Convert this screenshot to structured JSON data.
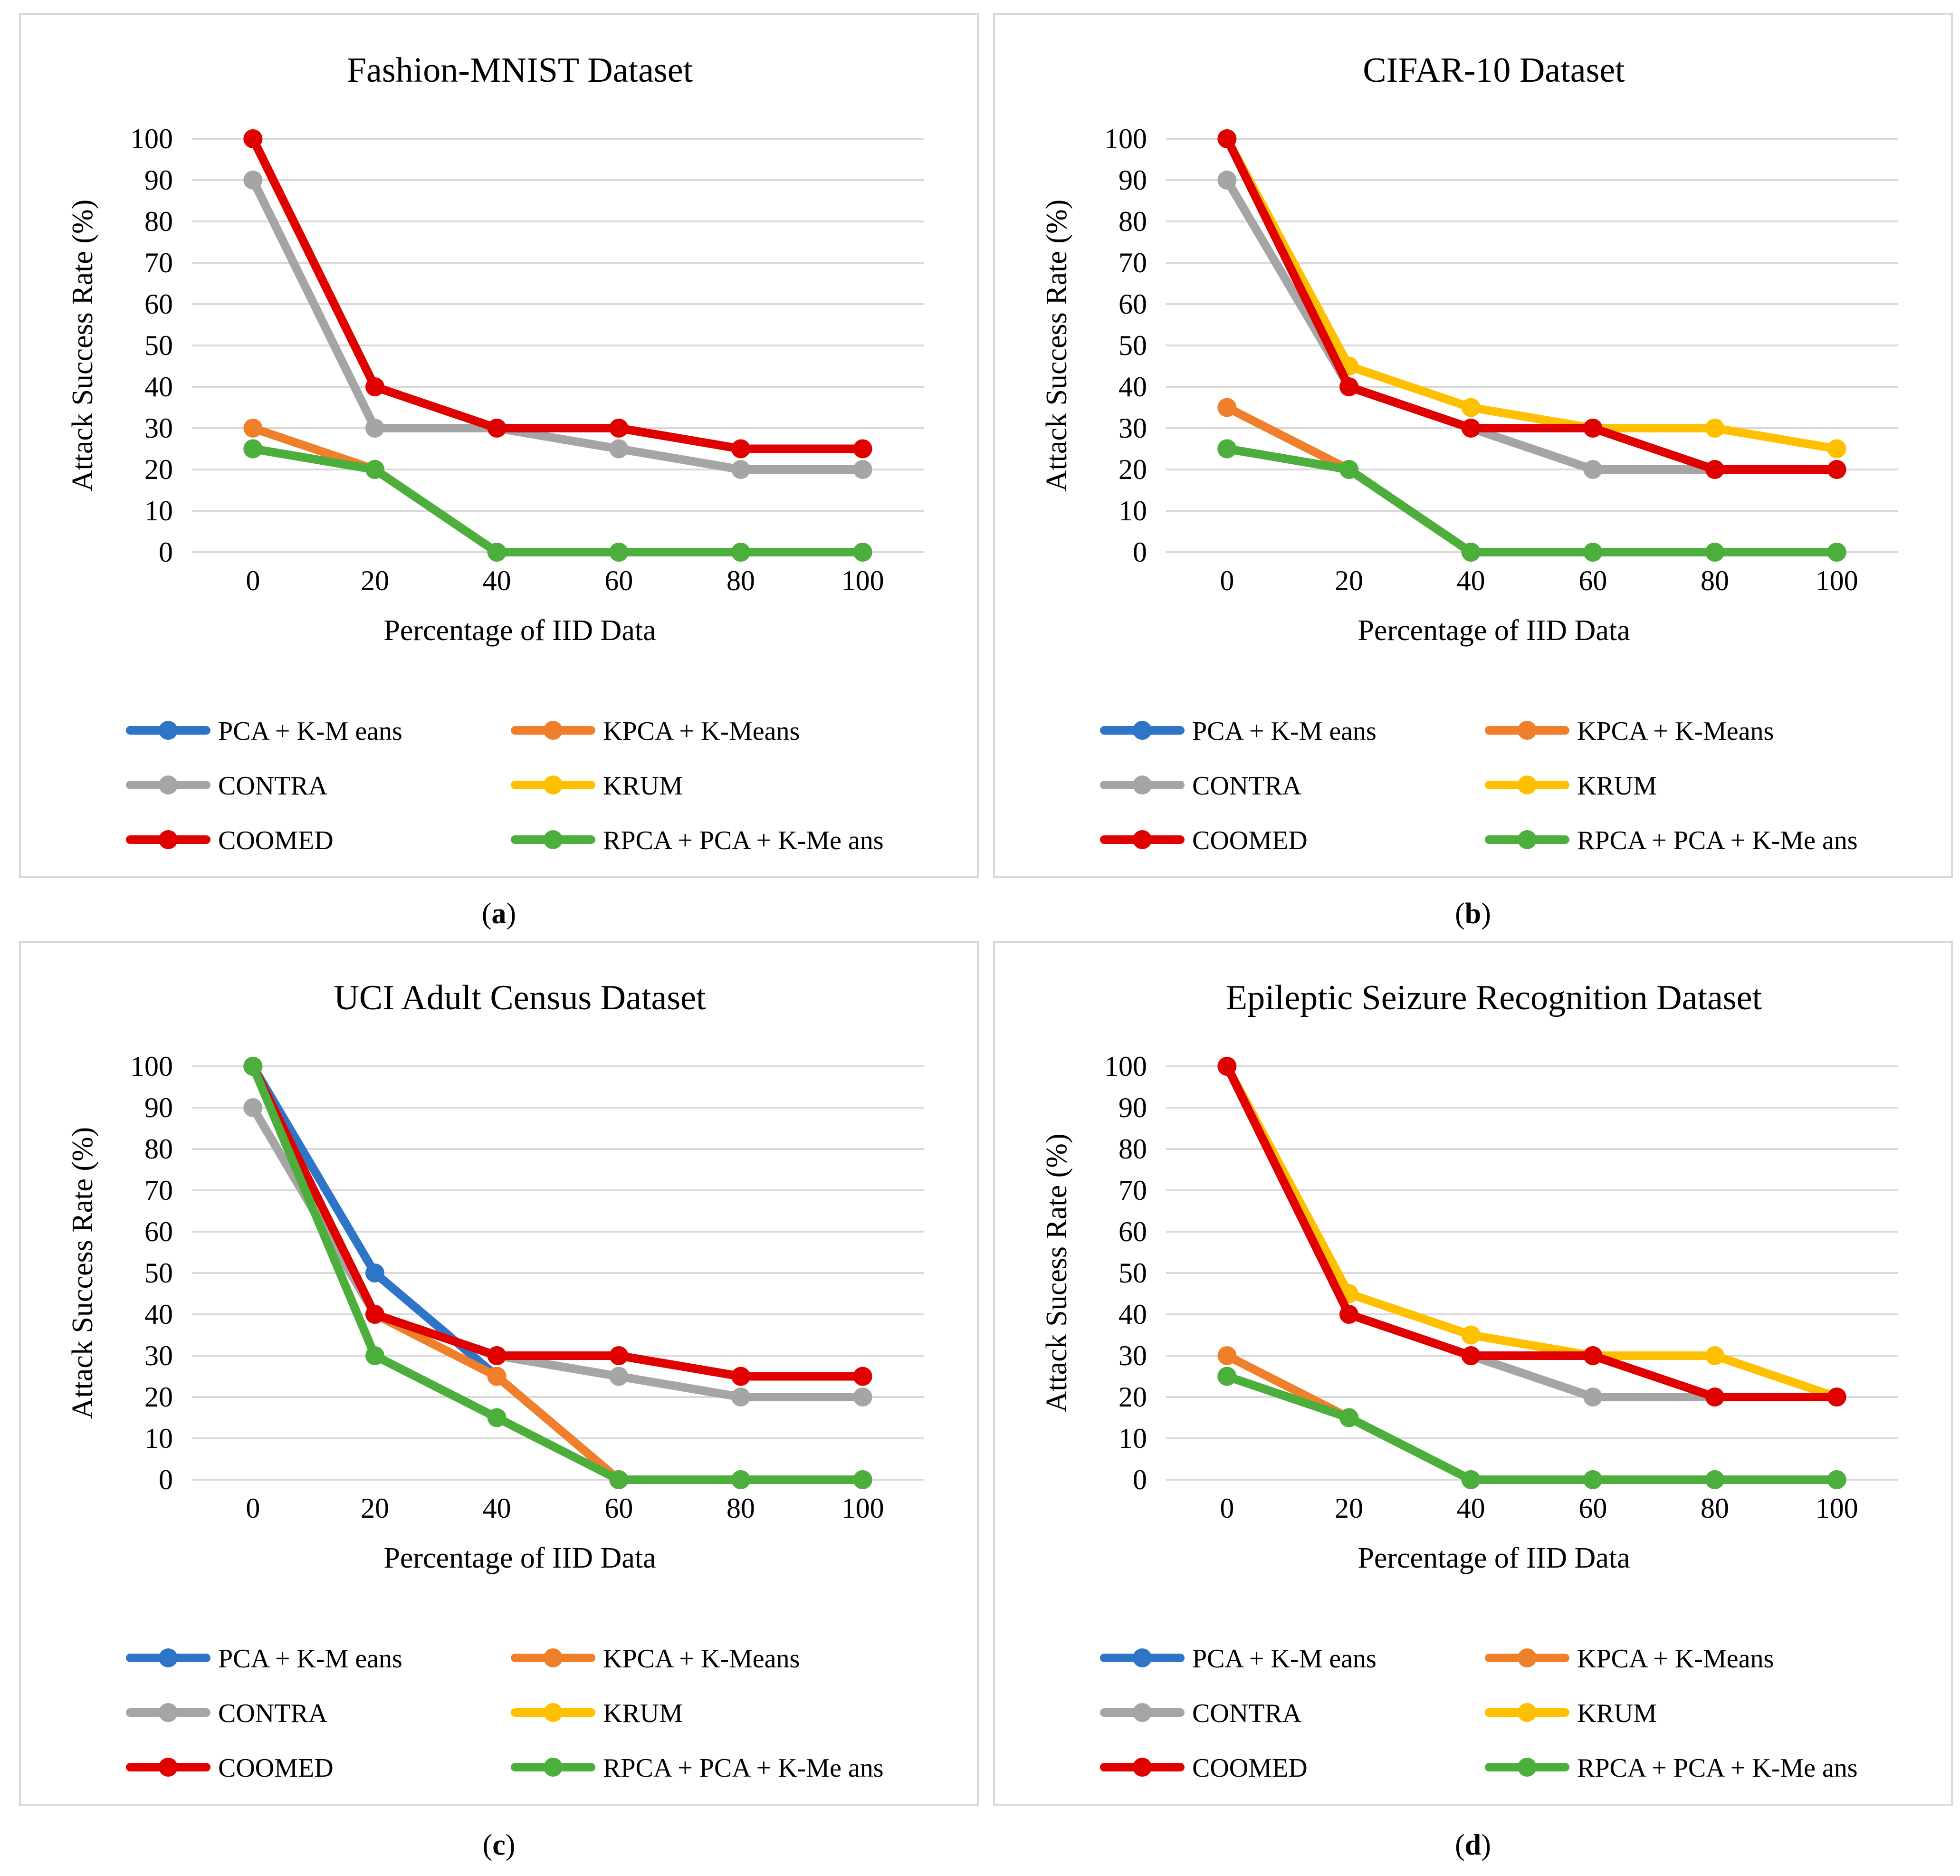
{
  "colors": {
    "PCA + K-Means": "#2e75c8",
    "KPCA + K-Means": "#f07f2c",
    "CONTRA": "#a5a5a5",
    "KRUM": "#ffc000",
    "COOMED": "#e00000",
    "RPCA + PCA + K-Means": "#4caf3c",
    "grid": "#d9d9d9"
  },
  "legend_labels": [
    "PCA + K-M eans",
    "KPCA + K-Means",
    "CONTRA",
    "KRUM",
    "COOMED",
    "RPCA + PCA + K-Me ans"
  ],
  "chart_data": [
    {
      "type": "line",
      "panel": "a",
      "caption": "a",
      "title": "Fashion-MNIST Dataset",
      "xlabel": "Percentage of IID Data",
      "ylabel": "Attack Success Rate (%)",
      "ylim": [
        0,
        100
      ],
      "yticks": [
        0,
        10,
        20,
        30,
        40,
        50,
        60,
        70,
        80,
        90,
        100
      ],
      "categories": [
        "0",
        "20",
        "40",
        "60",
        "80",
        "100"
      ],
      "series": [
        {
          "name": "PCA + K-Means",
          "values": [
            25,
            20,
            0,
            0,
            0,
            0
          ]
        },
        {
          "name": "KPCA + K-Means",
          "values": [
            30,
            20,
            0,
            0,
            0,
            0
          ]
        },
        {
          "name": "CONTRA",
          "values": [
            90,
            30,
            30,
            25,
            20,
            20
          ]
        },
        {
          "name": "KRUM",
          "values": [
            100,
            40,
            30,
            30,
            25,
            25
          ]
        },
        {
          "name": "COOMED",
          "values": [
            100,
            40,
            30,
            30,
            25,
            25
          ]
        },
        {
          "name": "RPCA + PCA + K-Means",
          "values": [
            25,
            20,
            0,
            0,
            0,
            0
          ]
        }
      ]
    },
    {
      "type": "line",
      "panel": "b",
      "caption": "b",
      "title": "CIFAR-10 Dataset",
      "xlabel": "Percentage of IID Data",
      "ylabel": "Attack Success Rate (%)",
      "ylim": [
        0,
        100
      ],
      "yticks": [
        0,
        10,
        20,
        30,
        40,
        50,
        60,
        70,
        80,
        90,
        100
      ],
      "categories": [
        "0",
        "20",
        "40",
        "60",
        "80",
        "100"
      ],
      "series": [
        {
          "name": "PCA + K-Means",
          "values": [
            25,
            20,
            0,
            0,
            0,
            0
          ]
        },
        {
          "name": "KPCA + K-Means",
          "values": [
            35,
            20,
            0,
            0,
            0,
            0
          ]
        },
        {
          "name": "CONTRA",
          "values": [
            90,
            40,
            30,
            20,
            20,
            20
          ]
        },
        {
          "name": "KRUM",
          "values": [
            100,
            45,
            35,
            30,
            30,
            25
          ]
        },
        {
          "name": "COOMED",
          "values": [
            100,
            40,
            30,
            30,
            20,
            20
          ]
        },
        {
          "name": "RPCA + PCA + K-Means",
          "values": [
            25,
            20,
            0,
            0,
            0,
            0
          ]
        }
      ]
    },
    {
      "type": "line",
      "panel": "c",
      "caption": "c",
      "title": "UCI Adult Census Dataset",
      "xlabel": "Percentage of IID Data",
      "ylabel": "Attack Success Rate (%)",
      "ylim": [
        0,
        100
      ],
      "yticks": [
        0,
        10,
        20,
        30,
        40,
        50,
        60,
        70,
        80,
        90,
        100
      ],
      "categories": [
        "0",
        "20",
        "40",
        "60",
        "80",
        "100"
      ],
      "series": [
        {
          "name": "PCA + K-Means",
          "values": [
            100,
            50,
            25,
            0,
            0,
            0
          ]
        },
        {
          "name": "KPCA + K-Means",
          "values": [
            100,
            40,
            25,
            0,
            0,
            0
          ]
        },
        {
          "name": "CONTRA",
          "values": [
            90,
            40,
            30,
            25,
            20,
            20
          ]
        },
        {
          "name": "KRUM",
          "values": [
            100,
            40,
            30,
            30,
            25,
            25
          ]
        },
        {
          "name": "COOMED",
          "values": [
            100,
            40,
            30,
            30,
            25,
            25
          ]
        },
        {
          "name": "RPCA + PCA + K-Means",
          "values": [
            100,
            30,
            15,
            0,
            0,
            0
          ]
        }
      ]
    },
    {
      "type": "line",
      "panel": "d",
      "caption": "d",
      "title": "Epileptic Seizure Recognition Dataset",
      "xlabel": "Percentage of IID Data",
      "ylabel": "Attack Sucess Rate (%)",
      "ylim": [
        0,
        100
      ],
      "yticks": [
        0,
        10,
        20,
        30,
        40,
        50,
        60,
        70,
        80,
        90,
        100
      ],
      "categories": [
        "0",
        "20",
        "40",
        "60",
        "80",
        "100"
      ],
      "series": [
        {
          "name": "PCA + K-Means",
          "values": [
            25,
            15,
            0,
            0,
            0,
            0
          ]
        },
        {
          "name": "KPCA + K-Means",
          "values": [
            30,
            15,
            0,
            0,
            0,
            0
          ]
        },
        {
          "name": "CONTRA",
          "values": [
            100,
            40,
            30,
            20,
            20,
            20
          ]
        },
        {
          "name": "KRUM",
          "values": [
            100,
            45,
            35,
            30,
            30,
            20
          ]
        },
        {
          "name": "COOMED",
          "values": [
            100,
            40,
            30,
            30,
            20,
            20
          ]
        },
        {
          "name": "RPCA + PCA + K-Means",
          "values": [
            25,
            15,
            0,
            0,
            0,
            0
          ]
        }
      ]
    }
  ]
}
